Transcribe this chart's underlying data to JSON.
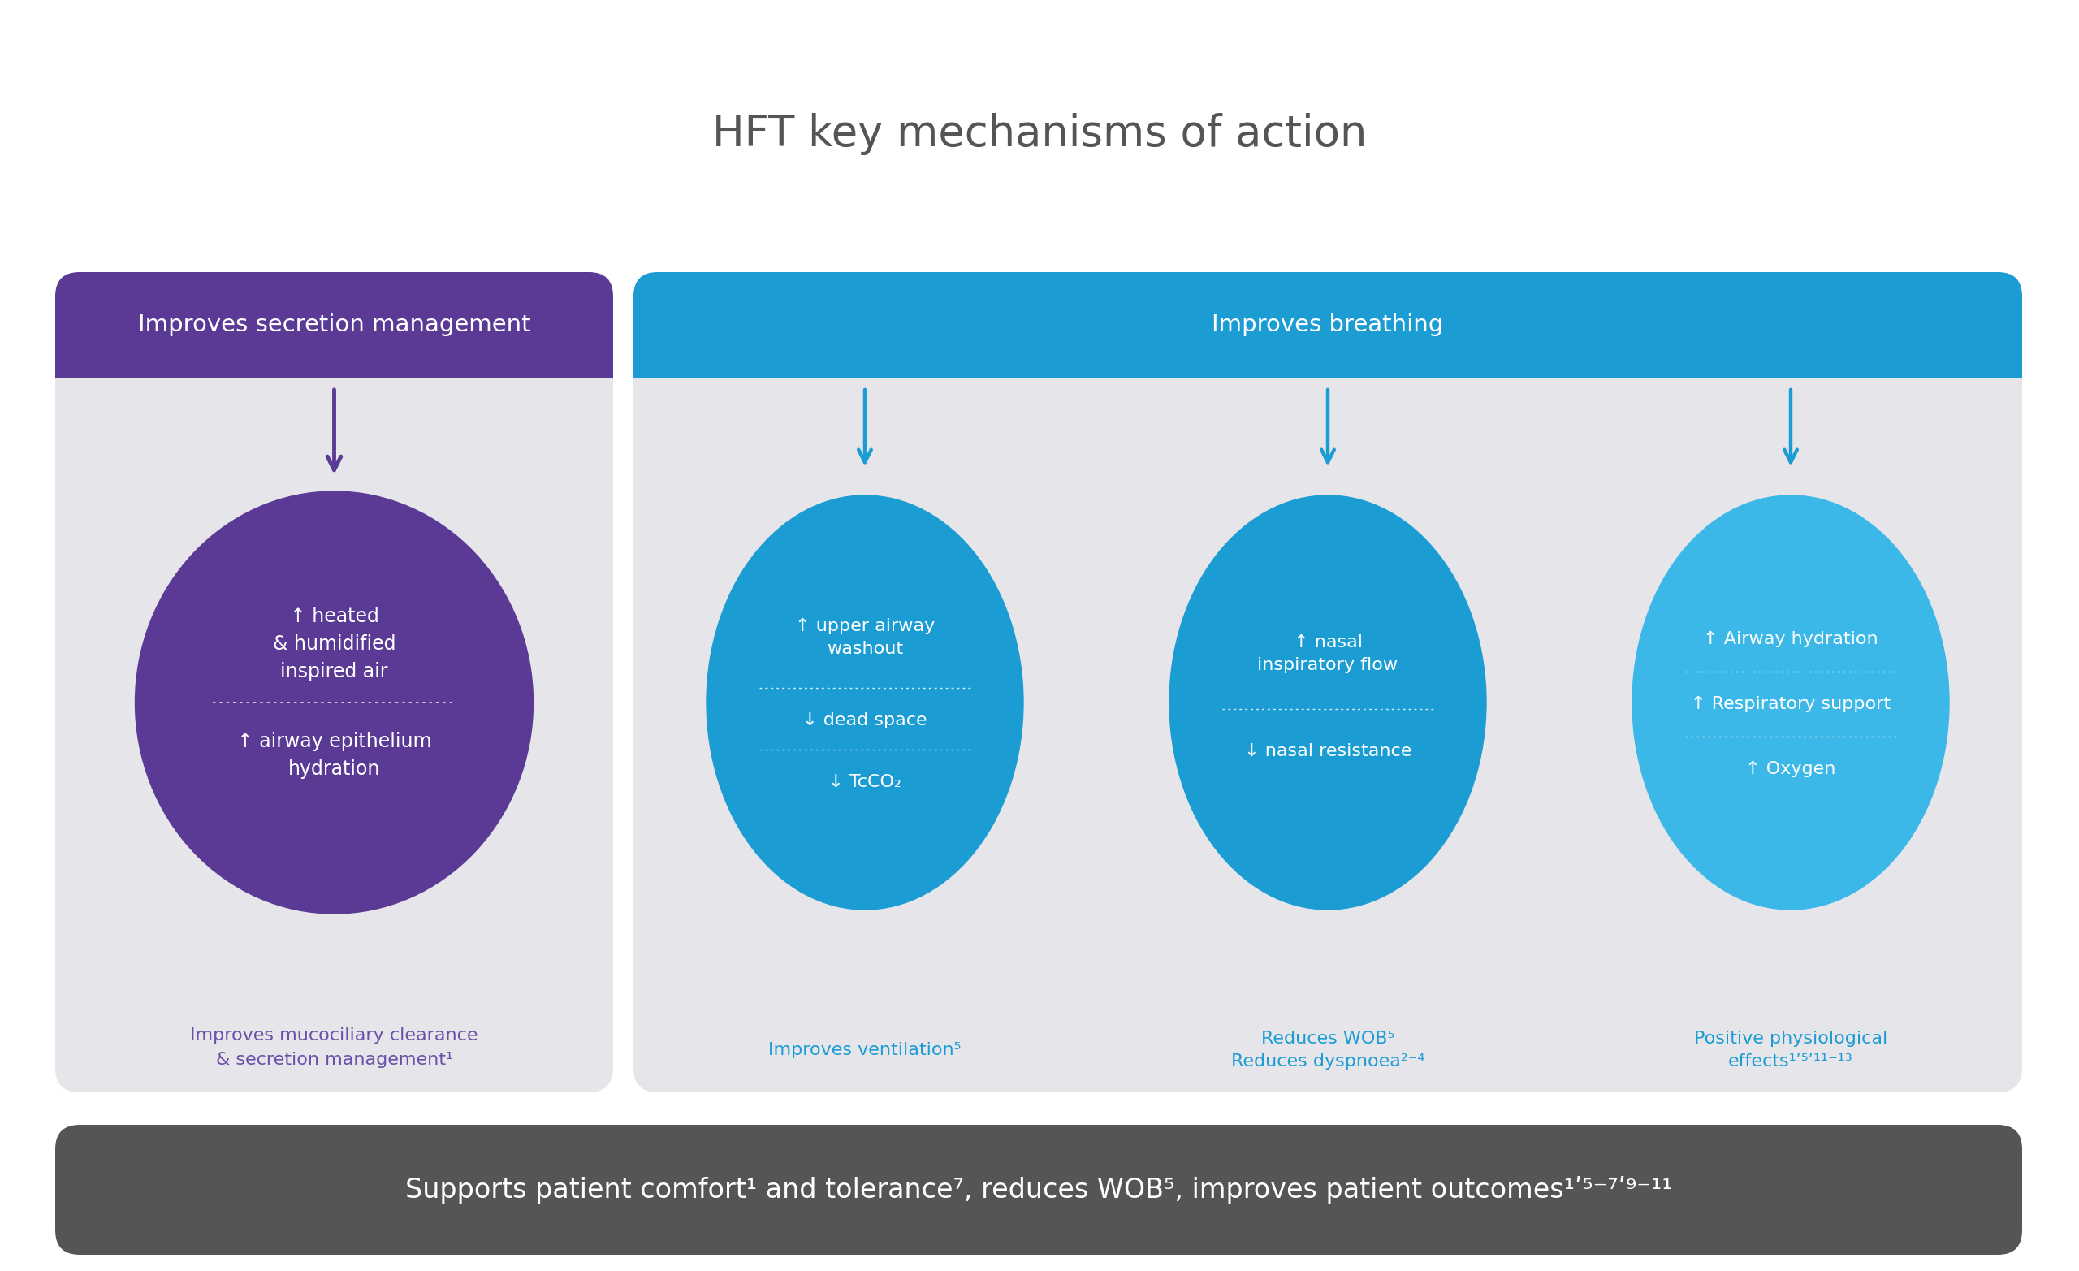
{
  "title": "HFT key mechanisms of action",
  "title_fontsize": 38,
  "title_color": "#555555",
  "bg_color": "#ffffff",
  "left_panel": {
    "header_bg": "#5B3A96",
    "header_text": "Improves secretion management",
    "header_text_color": "#ffffff",
    "body_bg": "#e5e5ea",
    "circle_color": "#5B3A96",
    "arrow_color": "#5B3A96",
    "footer_text": "Improves mucociliary clearance\n& secretion management¹",
    "footer_color": "#6B4FA8"
  },
  "right_panel": {
    "header_bg": "#1B9DD4",
    "header_text": "Improves breathing",
    "header_text_color": "#ffffff",
    "body_bg": "#e5e5ea",
    "arrow_color": "#1B9DD4",
    "circles": [
      {
        "color": "#1B9DD4",
        "footer": "Improves ventilation⁵",
        "footer_color": "#1B9DD4"
      },
      {
        "color": "#1B9DD4",
        "footer": "Reduces WOB⁵\nReduces dyspnoea²⁻⁴",
        "footer_color": "#1B9DD4"
      },
      {
        "color": "#3BB8E8",
        "footer": "Positive physiological\neffects¹ʹ⁵ʹ¹¹⁻¹³",
        "footer_color": "#1B9DD4"
      }
    ]
  },
  "bottom_bar": {
    "bg": "#555555",
    "text": "Supports patient comfort¹ and tolerance⁷, reduces WOB⁵, improves patient outcomes¹ʹ⁵⁻⁷ʹ⁹⁻¹¹",
    "text_color": "#ffffff",
    "fontsize": 24
  }
}
